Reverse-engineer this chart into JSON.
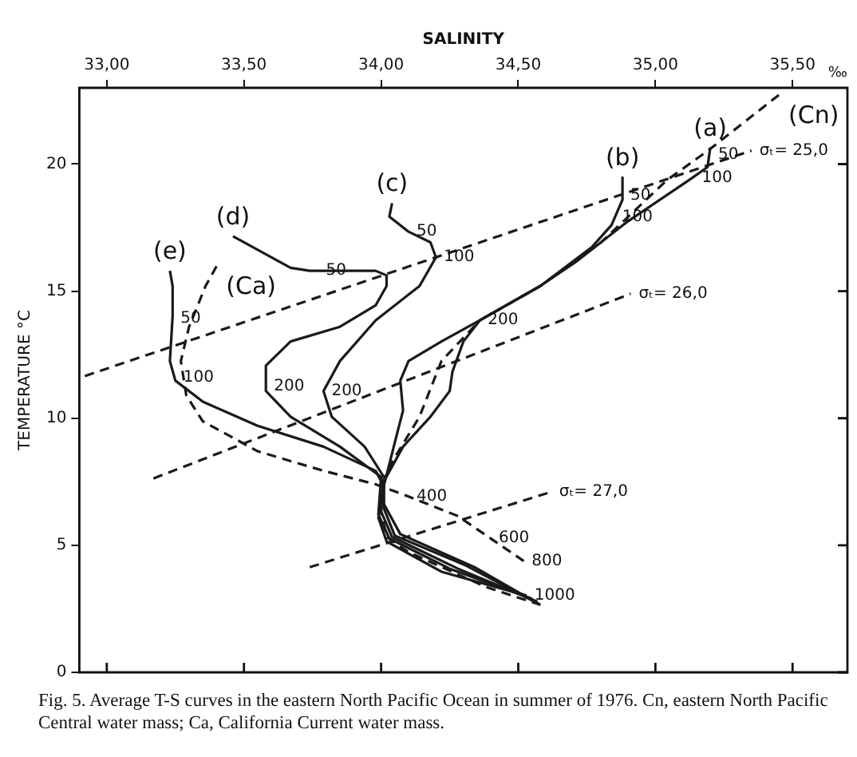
{
  "chart_data": {
    "type": "line",
    "xlabel": "SALINITY",
    "ylabel": "TEMPERATURE °C",
    "xlim": [
      32.9,
      35.7
    ],
    "ylim": [
      0,
      23
    ],
    "xticks": [
      {
        "value": 33,
        "label": "33,00"
      },
      {
        "value": 33.5,
        "label": "33,50"
      },
      {
        "value": 34,
        "label": "34,00"
      },
      {
        "value": 34.5,
        "label": "34,50"
      },
      {
        "value": 35,
        "label": "35,00"
      },
      {
        "value": 35.5,
        "label": "35,50"
      }
    ],
    "yticks": [
      0,
      5,
      10,
      15,
      20
    ],
    "grid": false,
    "marker": "none",
    "series": [
      {
        "name": "(a)",
        "color": "#1a1a1a",
        "line_style": "solid",
        "x": [
          35.2,
          35.19,
          35.12,
          34.9,
          34.71,
          34.58,
          34.36,
          34.3,
          34.26,
          34.25,
          34.18,
          34.08,
          34.01,
          34.01,
          34.07,
          34.34,
          34.58
        ],
        "values": [
          20.65,
          19.88,
          19.35,
          17.75,
          16.15,
          15.2,
          13.85,
          13.02,
          11.83,
          11.07,
          10.06,
          8.88,
          7.51,
          6.63,
          5.44,
          4.14,
          2.66
        ]
      },
      {
        "name": "(b)",
        "color": "#1a1a1a",
        "line_style": "solid",
        "x": [
          34.88,
          34.88,
          34.84,
          34.77,
          34.58,
          34.36,
          34.22,
          34.1,
          34.07,
          34.08,
          34.06,
          34.01,
          34.01,
          34.05,
          34.31,
          34.58
        ],
        "values": [
          19.47,
          18.6,
          17.6,
          16.75,
          15.2,
          13.85,
          13.02,
          12.25,
          11.48,
          10.3,
          9.47,
          7.34,
          6.45,
          5.38,
          4.2,
          2.66
        ]
      },
      {
        "name": "(c)",
        "color": "#1a1a1a",
        "line_style": "solid",
        "x": [
          34.04,
          34.03,
          34.1,
          34.18,
          34.2,
          34.14,
          33.98,
          33.85,
          33.79,
          33.82,
          33.94,
          34.01,
          34.0,
          34.04,
          34.28,
          34.57
        ],
        "values": [
          18.46,
          17.93,
          17.34,
          16.92,
          16.33,
          15.2,
          13.85,
          12.25,
          11.07,
          10.06,
          8.88,
          7.69,
          6.33,
          5.33,
          4.08,
          2.78
        ]
      },
      {
        "name": "(d)",
        "color": "#1a1a1a",
        "line_style": "solid",
        "x": [
          33.46,
          33.67,
          33.74,
          33.98,
          34.02,
          34.02,
          33.98,
          33.85,
          33.67,
          33.58,
          33.58,
          33.67,
          33.85,
          34.0,
          33.99,
          34.03,
          34.25,
          34.55
        ],
        "values": [
          17.16,
          15.92,
          15.8,
          15.8,
          15.62,
          15.2,
          14.44,
          13.6,
          13.02,
          12.07,
          11.07,
          10.06,
          8.88,
          7.69,
          6.21,
          5.27,
          4.08,
          2.9
        ]
      },
      {
        "name": "(e)",
        "color": "#1a1a1a",
        "line_style": "solid",
        "x": [
          33.23,
          33.24,
          33.24,
          33.23,
          33.25,
          33.35,
          33.55,
          33.79,
          33.98,
          34.01,
          33.99,
          34.02,
          34.22,
          34.53
        ],
        "values": [
          15.8,
          15.2,
          14.02,
          12.25,
          11.48,
          10.65,
          9.7,
          8.88,
          7.93,
          7.34,
          6.09,
          5.15,
          3.96,
          3.02
        ]
      },
      {
        "name": "(Ca)",
        "color": "#1a1a1a",
        "line_style": "dashed",
        "x": [
          33.4,
          33.36,
          33.3,
          33.27,
          33.29,
          33.35,
          33.55,
          33.79,
          33.98,
          34.1,
          34.28,
          34.52
        ],
        "values": [
          15.98,
          15.2,
          13.6,
          12.25,
          10.89,
          9.88,
          8.7,
          7.93,
          7.4,
          6.92,
          6.15,
          4.38
        ]
      },
      {
        "name": "(Cn)",
        "color": "#1a1a1a",
        "line_style": "dashed",
        "x": [
          35.45,
          35.2,
          35.04,
          34.8,
          34.58,
          34.36,
          34.22,
          34.14,
          34.04,
          34.0,
          34.0,
          34.02,
          34.1,
          34.38,
          34.58
        ],
        "values": [
          22.72,
          20.6,
          19.35,
          16.9,
          15.2,
          13.85,
          12.25,
          10.06,
          8.28,
          7.34,
          6.33,
          5.33,
          4.73,
          3.37,
          2.66
        ]
      },
      {
        "color": "#1a1a1a",
        "line_style": "dashed",
        "x": [
          32.92,
          35.35
        ],
        "values": [
          11.66,
          20.53
        ]
      },
      {
        "color": "#1a1a1a",
        "line_style": "dashed",
        "x": [
          33.17,
          34.91
        ],
        "values": [
          7.63,
          14.9
        ]
      },
      {
        "color": "#1a1a1a",
        "line_style": "dashed",
        "x": [
          33.74,
          34.62
        ],
        "values": [
          4.14,
          7.1
        ]
      }
    ],
    "annotations": [
      "‰",
      "Fig. 5.   Average T-S curves in the eastern North Pacific Ocean in summer of 1976.   Cn, eastern North Pacific Central water mass; Ca, California Current water mass.",
      {
        "text": "50",
        "x": 35.2,
        "y": 20.36
      },
      {
        "text": "100",
        "x": 35.14,
        "y": 19.47
      },
      {
        "text": "50",
        "x": 34.88,
        "y": 18.76
      },
      {
        "text": "100",
        "x": 34.85,
        "y": 17.93
      },
      {
        "text": "50",
        "x": 34.1,
        "y": 17.34
      },
      {
        "text": "100",
        "x": 34.2,
        "y": 16.33
      },
      {
        "text": "50",
        "x": 33.77,
        "y": 15.8
      },
      {
        "text": "50",
        "x": 33.24,
        "y": 13.91
      },
      {
        "text": "100",
        "x": 33.25,
        "y": 11.6
      },
      {
        "text": "200",
        "x": 34.36,
        "y": 13.85
      },
      {
        "text": "200",
        "x": 33.58,
        "y": 11.24
      },
      {
        "text": "200",
        "x": 33.79,
        "y": 11.07
      },
      {
        "text": "400",
        "x": 34.1,
        "y": 6.92
      },
      {
        "text": "600",
        "x": 34.4,
        "y": 5.27
      },
      {
        "text": "800",
        "x": 34.52,
        "y": 4.38
      },
      {
        "text": "1000",
        "x": 34.53,
        "y": 3.02
      },
      {
        "text": "σₜ= 25,0",
        "x": 35.35,
        "y": 20.53
      },
      {
        "text": "σₜ= 26,0",
        "x": 34.91,
        "y": 14.9
      },
      {
        "text": "σₜ= 27,0",
        "x": 34.62,
        "y": 7.1
      }
    ]
  }
}
